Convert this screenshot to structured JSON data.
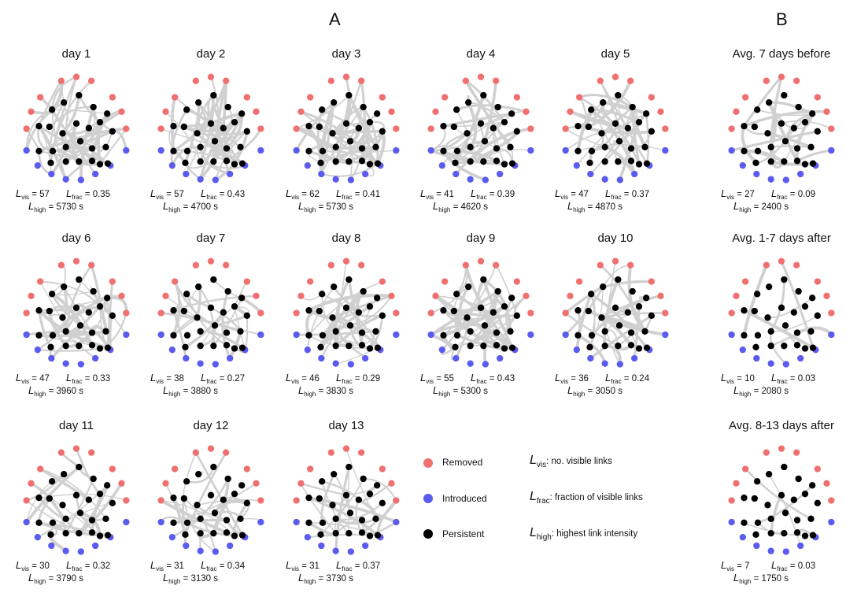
{
  "sections": {
    "a": "A",
    "b": "B"
  },
  "colors": {
    "removed": "#f07070",
    "introduced": "#5b5bef",
    "persistent": "#000000",
    "link": "#d0d0d0"
  },
  "panels": [
    {
      "title": "day 1",
      "lvis": "57",
      "lfrac": "0.35",
      "lhigh": "5730 s",
      "links": 57
    },
    {
      "title": "day 2",
      "lvis": "57",
      "lfrac": "0.43",
      "lhigh": "4700 s",
      "links": 57
    },
    {
      "title": "day 3",
      "lvis": "62",
      "lfrac": "0.41",
      "lhigh": "5730 s",
      "links": 62
    },
    {
      "title": "day 4",
      "lvis": "41",
      "lfrac": "0.39",
      "lhigh": "4620 s",
      "links": 41
    },
    {
      "title": "day 5",
      "lvis": "47",
      "lfrac": "0.37",
      "lhigh": "4870 s",
      "links": 47
    },
    {
      "title": "Avg. 7 days before",
      "lvis": "27",
      "lfrac": "0.09",
      "lhigh": "2400 s",
      "links": 27
    },
    {
      "title": "day 6",
      "lvis": "47",
      "lfrac": "0.33",
      "lhigh": "3960 s",
      "links": 47
    },
    {
      "title": "day 7",
      "lvis": "38",
      "lfrac": "0.27",
      "lhigh": "3880 s",
      "links": 38
    },
    {
      "title": "day 8",
      "lvis": "46",
      "lfrac": "0.29",
      "lhigh": "3830 s",
      "links": 46
    },
    {
      "title": "day 9",
      "lvis": "55",
      "lfrac": "0.43",
      "lhigh": "5300 s",
      "links": 55
    },
    {
      "title": "day 10",
      "lvis": "36",
      "lfrac": "0.24",
      "lhigh": "3050 s",
      "links": 36
    },
    {
      "title": "Avg. 1-7 days after",
      "lvis": "10",
      "lfrac": "0.03",
      "lhigh": "2080 s",
      "links": 10
    },
    {
      "title": "day 11",
      "lvis": "30",
      "lfrac": "0.32",
      "lhigh": "3790 s",
      "links": 30
    },
    {
      "title": "day 12",
      "lvis": "31",
      "lfrac": "0.34",
      "lhigh": "3130 s",
      "links": 31
    },
    {
      "title": "day 13",
      "lvis": "31",
      "lfrac": "0.37",
      "lhigh": "3730 s",
      "links": 31
    },
    {
      "title": "Avg. 8-13 days after",
      "lvis": "7",
      "lfrac": "0.03",
      "lhigh": "1750 s",
      "links": 7
    }
  ],
  "symbols": {
    "L": "L",
    "vis": "vis",
    "frac": "frac",
    "high": "high",
    "eq": "="
  },
  "legend": {
    "removed": "Removed",
    "introduced": "Introduced",
    "persistent": "Persistent",
    "vis_def": ": no. visible links",
    "frac_def": ": fraction of visible links",
    "high_def": ": highest link intensity"
  }
}
